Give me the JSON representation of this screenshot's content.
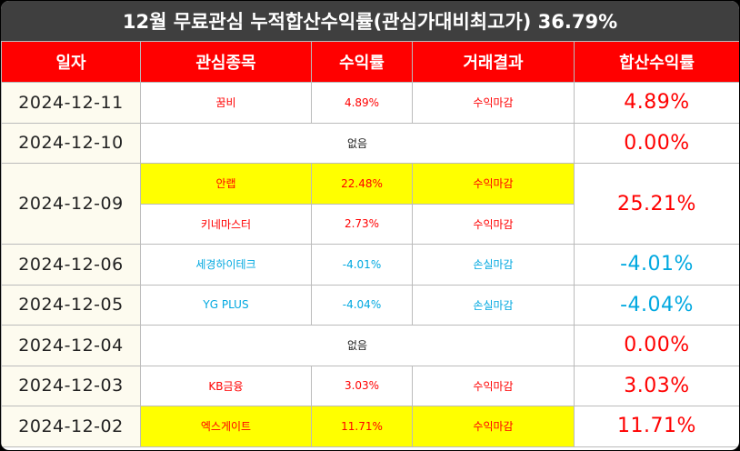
{
  "title": "12월 무료관심 누적합산수익률(관심가대비최고가) 36.79%",
  "columns": [
    "일자",
    "관심종목",
    "수익률",
    "거래결과",
    "합산수익률"
  ],
  "rows": [
    {
      "date": "2024-12-11",
      "stock": "꿈비",
      "return": "4.89%",
      "result": "수익마감",
      "total": "4.89%"
    },
    {
      "date": "2024-12-10",
      "none": "없음",
      "total": "0.00%"
    },
    {
      "date": "2024-12-09",
      "stock": "안랩",
      "return": "22.48%",
      "result": "수익마감",
      "total": "25.21%"
    },
    {
      "stock": "키네마스터",
      "return": "2.73%",
      "result": "수익마감"
    },
    {
      "date": "2024-12-06",
      "stock": "세경하이테크",
      "return": "-4.01%",
      "result": "손실마감",
      "total": "-4.01%"
    },
    {
      "date": "2024-12-05",
      "stock": "YG PLUS",
      "return": "-4.04%",
      "result": "손실마감",
      "total": "-4.04%"
    },
    {
      "date": "2024-12-04",
      "none": "없음",
      "total": "0.00%"
    },
    {
      "date": "2024-12-03",
      "stock": "KB금융",
      "return": "3.03%",
      "result": "수익마감",
      "total": "3.03%"
    },
    {
      "date": "2024-12-02",
      "stock": "엑스게이트",
      "return": "11.71%",
      "result": "수익마감",
      "total": "11.71%"
    }
  ],
  "colors": {
    "header_bg": "#ff0000",
    "title_bg": "#3f3f3f",
    "profit": "#ff0000",
    "loss": "#00a8e0",
    "highlight": "#ffff00"
  }
}
